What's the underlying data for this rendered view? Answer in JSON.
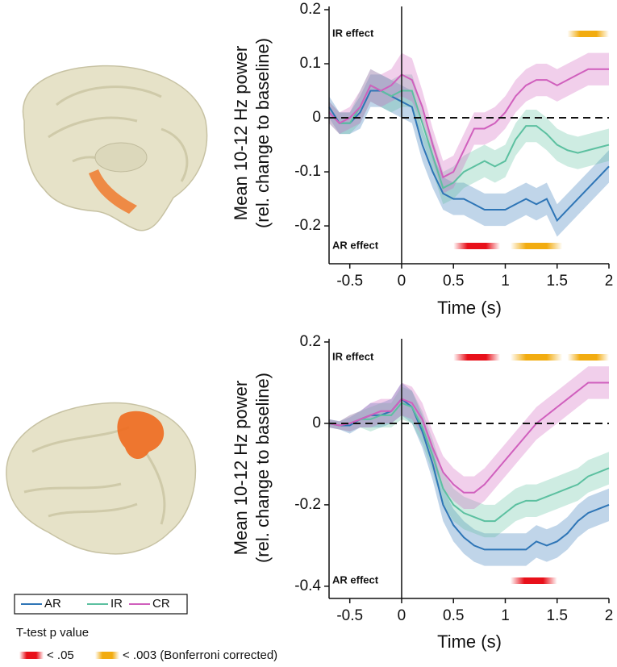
{
  "chart_data": [
    {
      "type": "line",
      "ylabel": [
        "Mean 10-12 Hz power",
        "(rel. change to baseline)"
      ],
      "xlabel": "Time (s)",
      "x": [
        -0.7,
        -0.6,
        -0.5,
        -0.4,
        -0.3,
        -0.2,
        -0.1,
        0,
        0.1,
        0.2,
        0.3,
        0.4,
        0.5,
        0.6,
        0.7,
        0.8,
        0.9,
        1.0,
        1.1,
        1.2,
        1.3,
        1.4,
        1.5,
        1.6,
        1.7,
        1.8,
        1.9,
        2.0
      ],
      "xlim": [
        -0.7,
        2
      ],
      "xticks": [
        -0.5,
        0,
        0.5,
        1,
        1.5,
        2
      ],
      "ylim": [
        -0.27,
        0.2
      ],
      "yticks": [
        0.2,
        0.1,
        0,
        -0.1,
        -0.2
      ],
      "hline": 0,
      "vline": 0,
      "series": [
        {
          "name": "AR",
          "color": "#2e75b6",
          "values": [
            0.02,
            -0.01,
            -0.01,
            0.01,
            0.05,
            0.05,
            0.04,
            0.03,
            0.02,
            -0.05,
            -0.1,
            -0.14,
            -0.15,
            -0.15,
            -0.16,
            -0.17,
            -0.17,
            -0.17,
            -0.16,
            -0.15,
            -0.16,
            -0.15,
            -0.19,
            -0.17,
            -0.15,
            -0.13,
            -0.11,
            -0.09
          ],
          "errors": [
            0.02,
            0.02,
            0.02,
            0.03,
            0.03,
            0.03,
            0.03,
            0.03,
            0.03,
            0.03,
            0.03,
            0.03,
            0.03,
            0.03,
            0.03,
            0.03,
            0.03,
            0.03,
            0.03,
            0.03,
            0.03,
            0.03,
            0.03,
            0.03,
            0.03,
            0.03,
            0.03,
            0.03
          ]
        },
        {
          "name": "IR",
          "color": "#5cc0a0",
          "values": [
            0.01,
            -0.01,
            -0.01,
            0.02,
            0.06,
            0.05,
            0.04,
            0.05,
            0.05,
            -0.01,
            -0.07,
            -0.13,
            -0.12,
            -0.1,
            -0.09,
            -0.08,
            -0.09,
            -0.08,
            -0.04,
            -0.015,
            -0.015,
            -0.03,
            -0.05,
            -0.06,
            -0.065,
            -0.06,
            -0.055,
            -0.05
          ],
          "errors": [
            0.02,
            0.02,
            0.02,
            0.03,
            0.03,
            0.03,
            0.03,
            0.03,
            0.03,
            0.03,
            0.03,
            0.03,
            0.03,
            0.03,
            0.03,
            0.03,
            0.03,
            0.03,
            0.03,
            0.03,
            0.03,
            0.03,
            0.03,
            0.03,
            0.03,
            0.03,
            0.03,
            0.03
          ]
        },
        {
          "name": "CR",
          "color": "#d05fbd",
          "values": [
            0.01,
            -0.01,
            0,
            0.02,
            0.06,
            0.05,
            0.06,
            0.08,
            0.07,
            0.02,
            -0.05,
            -0.11,
            -0.1,
            -0.06,
            -0.02,
            -0.02,
            -0.01,
            0.01,
            0.04,
            0.06,
            0.07,
            0.07,
            0.06,
            0.07,
            0.08,
            0.09,
            0.09,
            0.09
          ],
          "errors": [
            0.02,
            0.02,
            0.02,
            0.03,
            0.03,
            0.03,
            0.03,
            0.04,
            0.04,
            0.03,
            0.03,
            0.03,
            0.03,
            0.03,
            0.03,
            0.03,
            0.03,
            0.03,
            0.03,
            0.03,
            0.03,
            0.03,
            0.03,
            0.03,
            0.03,
            0.03,
            0.03,
            0.03
          ]
        }
      ],
      "effects": [
        {
          "label": "IR effect",
          "segments": [
            {
              "start": 1.6,
              "end": 2.0,
              "color": "#f2ac10"
            }
          ]
        },
        {
          "label": "AR effect",
          "segments": [
            {
              "start": 0.5,
              "end": 0.95,
              "color": "#e8101a"
            },
            {
              "start": 1.05,
              "end": 1.55,
              "color": "#f2ac10"
            }
          ]
        }
      ]
    },
    {
      "type": "line",
      "ylabel": [
        "Mean 10-12 Hz power",
        "(rel. change to baseline)"
      ],
      "xlabel": "Time (s)",
      "x": [
        -0.7,
        -0.6,
        -0.5,
        -0.4,
        -0.3,
        -0.2,
        -0.1,
        0,
        0.1,
        0.2,
        0.3,
        0.4,
        0.5,
        0.6,
        0.7,
        0.8,
        0.9,
        1.0,
        1.1,
        1.2,
        1.3,
        1.4,
        1.5,
        1.6,
        1.7,
        1.8,
        1.9,
        2.0
      ],
      "xlim": [
        -0.7,
        2
      ],
      "xticks": [
        -0.5,
        0,
        0.5,
        1,
        1.5,
        2
      ],
      "ylim": [
        -0.43,
        0.2
      ],
      "yticks": [
        0.2,
        0,
        -0.2,
        -0.4
      ],
      "hline": 0,
      "vline": 0,
      "series": [
        {
          "color": "#2e75b6",
          "values": [
            0,
            -0.005,
            -0.005,
            0.01,
            0.02,
            0.02,
            0.03,
            0.06,
            0.04,
            -0.02,
            -0.1,
            -0.2,
            -0.25,
            -0.28,
            -0.3,
            -0.31,
            -0.31,
            -0.31,
            -0.31,
            -0.31,
            -0.29,
            -0.3,
            -0.29,
            -0.27,
            -0.24,
            -0.22,
            -0.21,
            -0.2
          ],
          "errors": [
            0.01,
            0.01,
            0.02,
            0.02,
            0.03,
            0.03,
            0.03,
            0.04,
            0.04,
            0.04,
            0.04,
            0.04,
            0.04,
            0.04,
            0.04,
            0.04,
            0.04,
            0.04,
            0.04,
            0.04,
            0.04,
            0.04,
            0.04,
            0.04,
            0.04,
            0.04,
            0.04,
            0.04
          ]
        },
        {
          "color": "#5cc0a0",
          "values": [
            0,
            -0.005,
            0,
            0.01,
            0.01,
            0.02,
            0.02,
            0.05,
            0.04,
            -0.01,
            -0.08,
            -0.16,
            -0.2,
            -0.22,
            -0.23,
            -0.24,
            -0.24,
            -0.22,
            -0.2,
            -0.19,
            -0.19,
            -0.18,
            -0.17,
            -0.16,
            -0.15,
            -0.13,
            -0.12,
            -0.11
          ],
          "errors": [
            0.01,
            0.01,
            0.02,
            0.02,
            0.03,
            0.03,
            0.03,
            0.04,
            0.04,
            0.04,
            0.04,
            0.04,
            0.04,
            0.04,
            0.04,
            0.04,
            0.04,
            0.04,
            0.04,
            0.04,
            0.04,
            0.04,
            0.04,
            0.04,
            0.04,
            0.04,
            0.04,
            0.04
          ]
        },
        {
          "color": "#d05fbd",
          "values": [
            0,
            -0.005,
            0,
            0.01,
            0.02,
            0.03,
            0.03,
            0.06,
            0.05,
            0.01,
            -0.06,
            -0.12,
            -0.15,
            -0.17,
            -0.17,
            -0.15,
            -0.12,
            -0.09,
            -0.06,
            -0.03,
            0,
            0.02,
            0.04,
            0.06,
            0.08,
            0.1,
            0.1,
            0.1
          ],
          "errors": [
            0.01,
            0.01,
            0.02,
            0.02,
            0.03,
            0.03,
            0.03,
            0.04,
            0.04,
            0.04,
            0.04,
            0.04,
            0.04,
            0.04,
            0.04,
            0.04,
            0.04,
            0.04,
            0.04,
            0.04,
            0.04,
            0.04,
            0.04,
            0.04,
            0.04,
            0.04,
            0.04,
            0.04
          ]
        }
      ],
      "effects": [
        {
          "label": "IR effect",
          "segments": [
            {
              "start": 0.5,
              "end": 0.95,
              "color": "#e8101a"
            },
            {
              "start": 1.05,
              "end": 1.55,
              "color": "#f2ac10"
            },
            {
              "start": 1.6,
              "end": 2.0,
              "color": "#f2ac10"
            }
          ]
        },
        {
          "label": "AR effect",
          "segments": [
            {
              "start": 1.05,
              "end": 1.5,
              "color": "#e8101a"
            }
          ]
        }
      ]
    }
  ],
  "p_legend": {
    "title": "T-test p value",
    "items": [
      {
        "label": "< .05",
        "color": "#e8101a"
      },
      {
        "label": "< .003 (Bonferroni corrected)",
        "color": "#f2ac10"
      }
    ]
  }
}
